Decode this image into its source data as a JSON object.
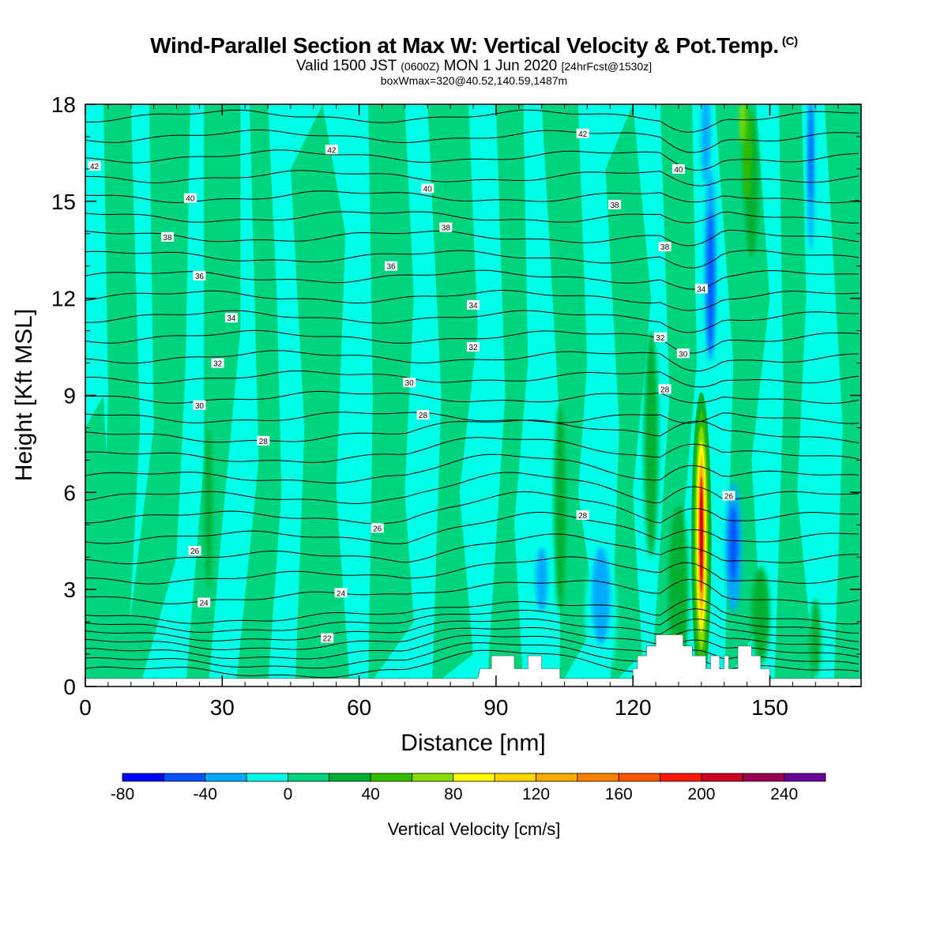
{
  "header": {
    "title": "Wind-Parallel Section at Max W: Vertical Velocity & Pot.Temp.",
    "copyright": "(C)",
    "valid_prefix": "Valid 1500 JST",
    "valid_utc": "(0600Z)",
    "valid_date": "MON 1 Jun 2020",
    "forecast_info": "[24hrFcst@1530z]",
    "box_info": "boxWmax=320@40.52,140.59,1487m"
  },
  "colors": {
    "background": "#ffffff",
    "w_neg60": "#0051ff",
    "w_neg40": "#00aaff",
    "w_neg20": "#00ffe6",
    "w_0": "#00d47f",
    "w_20": "#00b030",
    "w_40": "#33bb00",
    "w_60": "#88dd00",
    "w_80": "#ffff00",
    "w_100": "#ffd500",
    "w_120": "#ffaa00",
    "w_160": "#ff3300",
    "w_200": "#cc0022",
    "terrain": "#ffffff",
    "contour": "#000000"
  },
  "chart_data": {
    "type": "heatmap",
    "subtype": "vertical cross-section with filled contours and line contours",
    "xlabel": "Distance [nm]",
    "ylabel": "Height [Kft MSL]",
    "xlim": [
      0,
      170
    ],
    "ylim": [
      0,
      18
    ],
    "xticks": [
      0,
      30,
      60,
      90,
      120,
      150
    ],
    "yticks": [
      0,
      3,
      6,
      9,
      12,
      15,
      18
    ],
    "xtick_labels": [
      "0",
      "30",
      "60",
      "90",
      "120",
      "150"
    ],
    "ytick_labels": [
      "0",
      "3",
      "6",
      "9",
      "12",
      "15",
      "18"
    ],
    "grid": false,
    "filled_field": "Vertical Velocity",
    "colorbar": {
      "label": "Vertical Velocity [cm/s]",
      "placement": "bottom",
      "bin_edges": [
        -80,
        -60,
        -40,
        -20,
        0,
        20,
        40,
        60,
        80,
        100,
        120,
        140,
        160,
        180,
        200,
        220,
        240,
        260
      ],
      "colors": [
        "#0000ff",
        "#0051ff",
        "#00aaff",
        "#00ffe6",
        "#00d47f",
        "#00b030",
        "#33bb00",
        "#88dd00",
        "#ffff00",
        "#ffd500",
        "#ffaa00",
        "#ff8000",
        "#ff5500",
        "#ff1a00",
        "#cc0022",
        "#99004d",
        "#660099"
      ],
      "tick_values": [
        -80,
        -40,
        0,
        40,
        80,
        120,
        160,
        200,
        240
      ],
      "tick_labels": [
        "-80",
        "-40",
        "0",
        "40",
        "80",
        "120",
        "160",
        "200",
        "240"
      ]
    },
    "max_updraft": {
      "x_nm": 135,
      "y_kft_range": [
        0.8,
        9.0
      ],
      "peak_cm_s": 320
    },
    "downdraft_cores": [
      {
        "x_nm": 137,
        "y_kft_range": [
          10,
          16
        ],
        "min_cm_s": -80
      },
      {
        "x_nm": 142,
        "y_kft_range": [
          2.5,
          5.5
        ],
        "min_cm_s": -60
      },
      {
        "x_nm": 159,
        "y_kft_range": [
          14,
          18
        ],
        "min_cm_s": -60
      },
      {
        "x_nm": 112,
        "y_kft_range": [
          1,
          5
        ],
        "min_cm_s": -40
      },
      {
        "x_nm": 100,
        "y_kft_range": [
          2,
          5
        ],
        "min_cm_s": -40
      }
    ],
    "theta_contour_labels": [
      {
        "text": "42",
        "x": 2,
        "y": 16.1
      },
      {
        "text": "42",
        "x": 54,
        "y": 16.6
      },
      {
        "text": "42",
        "x": 109,
        "y": 17.1
      },
      {
        "text": "40",
        "x": 23,
        "y": 15.1
      },
      {
        "text": "40",
        "x": 75,
        "y": 15.4
      },
      {
        "text": "40",
        "x": 130,
        "y": 16.0
      },
      {
        "text": "38",
        "x": 18,
        "y": 13.9
      },
      {
        "text": "38",
        "x": 79,
        "y": 14.2
      },
      {
        "text": "38",
        "x": 116,
        "y": 14.9
      },
      {
        "text": "38",
        "x": 127,
        "y": 13.6
      },
      {
        "text": "36",
        "x": 25,
        "y": 12.7
      },
      {
        "text": "36",
        "x": 67,
        "y": 13.0
      },
      {
        "text": "34",
        "x": 32,
        "y": 11.4
      },
      {
        "text": "34",
        "x": 85,
        "y": 11.8
      },
      {
        "text": "34",
        "x": 135,
        "y": 12.3
      },
      {
        "text": "32",
        "x": 29,
        "y": 10.0
      },
      {
        "text": "32",
        "x": 85,
        "y": 10.5
      },
      {
        "text": "32",
        "x": 126,
        "y": 10.8
      },
      {
        "text": "30",
        "x": 25,
        "y": 8.7
      },
      {
        "text": "30",
        "x": 71,
        "y": 9.4
      },
      {
        "text": "30",
        "x": 131,
        "y": 10.3
      },
      {
        "text": "28",
        "x": 39,
        "y": 7.6
      },
      {
        "text": "28",
        "x": 74,
        "y": 8.4
      },
      {
        "text": "28",
        "x": 127,
        "y": 9.2
      },
      {
        "text": "28",
        "x": 109,
        "y": 5.3
      },
      {
        "text": "26",
        "x": 24,
        "y": 4.2
      },
      {
        "text": "26",
        "x": 64,
        "y": 4.9
      },
      {
        "text": "26",
        "x": 141,
        "y": 5.9
      },
      {
        "text": "24",
        "x": 26,
        "y": 2.6
      },
      {
        "text": "24",
        "x": 56,
        "y": 2.9
      },
      {
        "text": "22",
        "x": 53,
        "y": 1.5
      }
    ],
    "terrain_profile": {
      "x": [
        0,
        86,
        86.5,
        89,
        89,
        94,
        94,
        97,
        97,
        100,
        100,
        104,
        104,
        120,
        120,
        121,
        121,
        123,
        123,
        125,
        125,
        127,
        127,
        131,
        131,
        133,
        133,
        136,
        136,
        137,
        137,
        139,
        139,
        140,
        140,
        141,
        141,
        143,
        143,
        146,
        146,
        148,
        148,
        150,
        150,
        170
      ],
      "y": [
        0.25,
        0.25,
        0.55,
        0.55,
        0.95,
        0.95,
        0.55,
        0.55,
        0.95,
        0.95,
        0.55,
        0.55,
        0.25,
        0.25,
        0.55,
        0.55,
        0.95,
        0.95,
        1.25,
        1.25,
        1.6,
        1.6,
        1.6,
        1.6,
        1.25,
        1.25,
        0.95,
        0.95,
        0.55,
        0.55,
        0.95,
        0.95,
        0.55,
        0.55,
        0.95,
        0.95,
        0.55,
        0.55,
        1.25,
        1.25,
        0.95,
        0.95,
        0.55,
        0.55,
        0.25,
        0.25
      ]
    }
  }
}
